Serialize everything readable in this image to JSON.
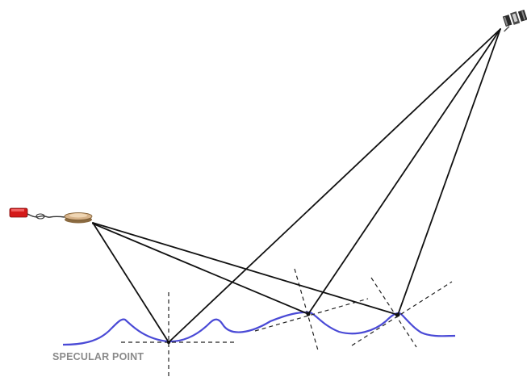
{
  "labels": {
    "specular_point": "SPECULAR POINT"
  },
  "icons": {
    "satellite": "satellite-icon",
    "receiver_antenna": "receiver-antenna-icon",
    "receiver_box": "receiver-box-icon"
  },
  "colors": {
    "background": "#ffffff",
    "ray": "#111111",
    "normal": "#222222",
    "sea_surface": "#4a4ad6",
    "label": "#8a8a8a",
    "receiver_box": "#d41a1a",
    "antenna": "#c89a6a"
  }
}
